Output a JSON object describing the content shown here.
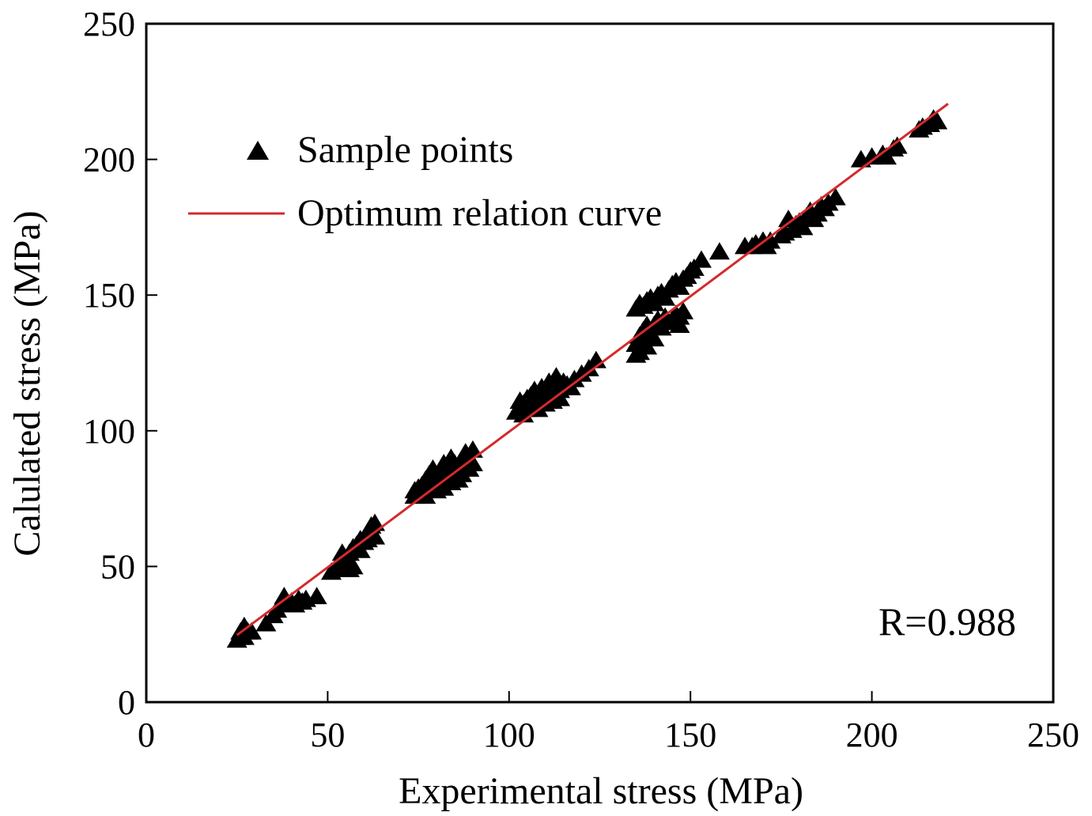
{
  "chart_data": {
    "type": "scatter",
    "title": "",
    "xlabel": "Experimental stress (MPa)",
    "ylabel": "Calulated stress (MPa)",
    "xlim": [
      0,
      250
    ],
    "ylim": [
      0,
      250
    ],
    "xticks": [
      "0",
      "50",
      "100",
      "150",
      "200",
      "250"
    ],
    "yticks": [
      "0",
      "50",
      "100",
      "150",
      "200",
      "250"
    ],
    "grid": false,
    "legend_position": "upper-left",
    "annotation": "R=0.988",
    "colors": {
      "points": "#000000",
      "curve": "#d42a2a",
      "axes": "#000000"
    },
    "series": [
      {
        "name": "Sample points",
        "kind": "scatter",
        "marker": "triangle",
        "points": [
          [
            25,
            23
          ],
          [
            26,
            24
          ],
          [
            27,
            24
          ],
          [
            28,
            26
          ],
          [
            27,
            28
          ],
          [
            29,
            26
          ],
          [
            26,
            26
          ],
          [
            33,
            29
          ],
          [
            35,
            32
          ],
          [
            36,
            34
          ],
          [
            37,
            36
          ],
          [
            38,
            37
          ],
          [
            38,
            39
          ],
          [
            40,
            37
          ],
          [
            41,
            36
          ],
          [
            42,
            38
          ],
          [
            43,
            37
          ],
          [
            44,
            38
          ],
          [
            47,
            39
          ],
          [
            51,
            48
          ],
          [
            52,
            49
          ],
          [
            53,
            50
          ],
          [
            54,
            52
          ],
          [
            54,
            55
          ],
          [
            55,
            53
          ],
          [
            56,
            55
          ],
          [
            56,
            49
          ],
          [
            57,
            50
          ],
          [
            57,
            57
          ],
          [
            58,
            58
          ],
          [
            59,
            56
          ],
          [
            59,
            60
          ],
          [
            60,
            59
          ],
          [
            61,
            60
          ],
          [
            61,
            62
          ],
          [
            62,
            63
          ],
          [
            62,
            65
          ],
          [
            63,
            66
          ],
          [
            63,
            61
          ],
          [
            74,
            78
          ],
          [
            74,
            76
          ],
          [
            75,
            79
          ],
          [
            76,
            80
          ],
          [
            76,
            77
          ],
          [
            77,
            82
          ],
          [
            77,
            76
          ],
          [
            78,
            80
          ],
          [
            78,
            84
          ],
          [
            79,
            80
          ],
          [
            79,
            86
          ],
          [
            80,
            78
          ],
          [
            80,
            82
          ],
          [
            81,
            84
          ],
          [
            81,
            81
          ],
          [
            82,
            88
          ],
          [
            82,
            79
          ],
          [
            83,
            83
          ],
          [
            83,
            86
          ],
          [
            84,
            90
          ],
          [
            84,
            81
          ],
          [
            85,
            85
          ],
          [
            85,
            88
          ],
          [
            86,
            82
          ],
          [
            86,
            86
          ],
          [
            87,
            89
          ],
          [
            87,
            84
          ],
          [
            88,
            87
          ],
          [
            88,
            92
          ],
          [
            89,
            90
          ],
          [
            89,
            86
          ],
          [
            90,
            88
          ],
          [
            90,
            93
          ],
          [
            102,
            107
          ],
          [
            103,
            109
          ],
          [
            103,
            111
          ],
          [
            104,
            110
          ],
          [
            104,
            106
          ],
          [
            105,
            112
          ],
          [
            105,
            108
          ],
          [
            106,
            110
          ],
          [
            106,
            113
          ],
          [
            107,
            111
          ],
          [
            107,
            115
          ],
          [
            108,
            112
          ],
          [
            108,
            108
          ],
          [
            109,
            114
          ],
          [
            109,
            116
          ],
          [
            110,
            113
          ],
          [
            110,
            110
          ],
          [
            111,
            116
          ],
          [
            111,
            118
          ],
          [
            112,
            114
          ],
          [
            112,
            111
          ],
          [
            113,
            117
          ],
          [
            113,
            120
          ],
          [
            114,
            115
          ],
          [
            114,
            112
          ],
          [
            115,
            118
          ],
          [
            116,
            117
          ],
          [
            117,
            116
          ],
          [
            118,
            119
          ],
          [
            120,
            121
          ],
          [
            122,
            123
          ],
          [
            124,
            126
          ],
          [
            135,
            128
          ],
          [
            135,
            132
          ],
          [
            136,
            129
          ],
          [
            136,
            135
          ],
          [
            137,
            133
          ],
          [
            137,
            137
          ],
          [
            138,
            131
          ],
          [
            138,
            139
          ],
          [
            139,
            136
          ],
          [
            140,
            134
          ],
          [
            140,
            139
          ],
          [
            141,
            141
          ],
          [
            142,
            138
          ],
          [
            143,
            142
          ],
          [
            144,
            140
          ],
          [
            145,
            141
          ],
          [
            146,
            143
          ],
          [
            147,
            142
          ],
          [
            147,
            139
          ],
          [
            148,
            144
          ],
          [
            135,
            145
          ],
          [
            136,
            147
          ],
          [
            137,
            146
          ],
          [
            138,
            148
          ],
          [
            139,
            149
          ],
          [
            140,
            147
          ],
          [
            141,
            150
          ],
          [
            142,
            151
          ],
          [
            143,
            149
          ],
          [
            144,
            152
          ],
          [
            145,
            154
          ],
          [
            146,
            155
          ],
          [
            147,
            153
          ],
          [
            148,
            156
          ],
          [
            149,
            157
          ],
          [
            150,
            159
          ],
          [
            151,
            160
          ],
          [
            153,
            163
          ],
          [
            158,
            166
          ],
          [
            165,
            168
          ],
          [
            167,
            168
          ],
          [
            168,
            169
          ],
          [
            170,
            170
          ],
          [
            171,
            168
          ],
          [
            172,
            170
          ],
          [
            175,
            172
          ],
          [
            176,
            173
          ],
          [
            177,
            178
          ],
          [
            178,
            174
          ],
          [
            179,
            176
          ],
          [
            180,
            177
          ],
          [
            181,
            175
          ],
          [
            182,
            179
          ],
          [
            183,
            181
          ],
          [
            184,
            178
          ],
          [
            185,
            180
          ],
          [
            186,
            183
          ],
          [
            187,
            182
          ],
          [
            188,
            184
          ],
          [
            190,
            186
          ],
          [
            197,
            200
          ],
          [
            200,
            201
          ],
          [
            203,
            202
          ],
          [
            204,
            201
          ],
          [
            206,
            204
          ],
          [
            207,
            205
          ],
          [
            213,
            211
          ],
          [
            214,
            212
          ],
          [
            216,
            213
          ],
          [
            217,
            215
          ],
          [
            218,
            214
          ]
        ]
      },
      {
        "name": "Optimum relation curve",
        "kind": "line",
        "points": [
          [
            25,
            24.7
          ],
          [
            221,
            220.5
          ]
        ]
      }
    ]
  }
}
